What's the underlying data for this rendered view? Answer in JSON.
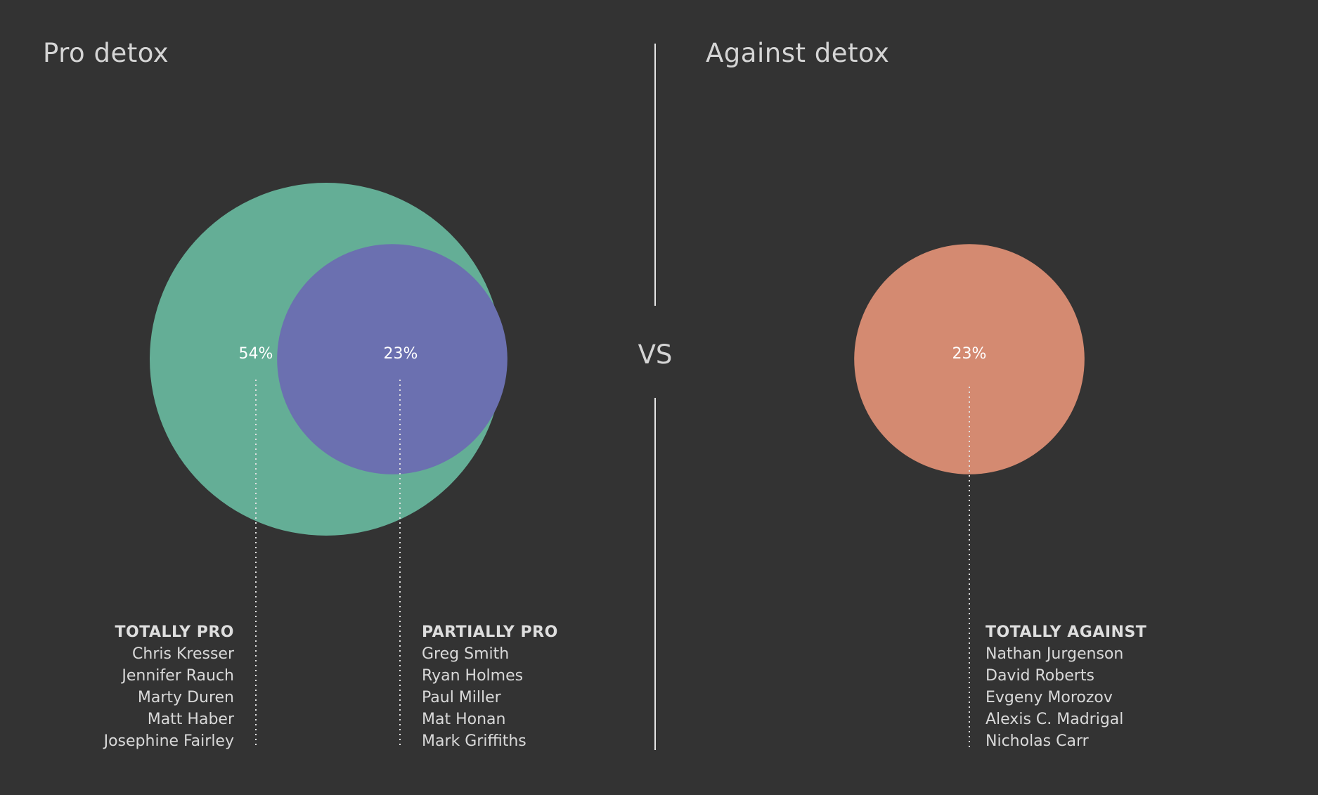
{
  "titles": {
    "pro": "Pro detox",
    "against": "Against detox"
  },
  "vs_label": "VS",
  "colors": {
    "background": "#333333",
    "totally_pro": "#64ae96",
    "partially_pro": "#6b70b0",
    "totally_against": "#d48a71",
    "text": "#d9d9d9"
  },
  "chart_data": {
    "type": "bubble",
    "series": [
      {
        "name": "TOTALLY PRO",
        "value": 54,
        "label": "54%",
        "side": "pro",
        "people": [
          "Chris Kresser",
          "Jennifer Rauch",
          "Marty Duren",
          "Matt Haber",
          "Josephine Fairley"
        ]
      },
      {
        "name": "PARTIALLY PRO",
        "value": 23,
        "label": "23%",
        "side": "pro",
        "people": [
          "Greg Smith",
          "Ryan Holmes",
          "Paul Miller",
          "Mat Honan",
          "Mark Griffiths"
        ]
      },
      {
        "name": "TOTALLY AGAINST",
        "value": 23,
        "label": "23%",
        "side": "against",
        "people": [
          "Nathan Jurgenson",
          "David Roberts",
          "Evgeny Morozov",
          "Alexis C. Madrigal",
          "Nicholas Carr"
        ]
      }
    ]
  }
}
